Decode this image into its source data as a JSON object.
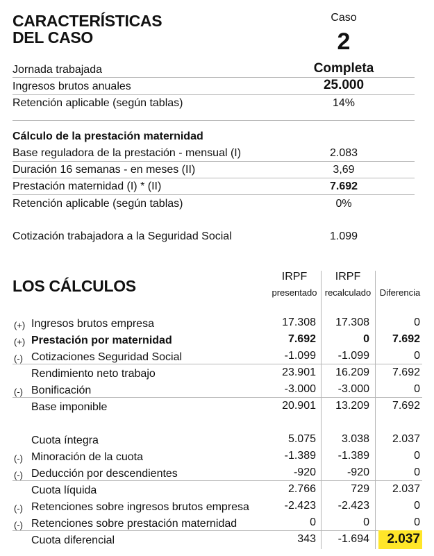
{
  "section1": {
    "title_line1": "CARACTERÍSTICAS",
    "title_line2": "DEL CASO",
    "case_label": "Caso",
    "case_number": "2",
    "rows": [
      {
        "label": "Jornada trabajada",
        "value": "Completa"
      },
      {
        "label": "Ingresos brutos anuales",
        "value": "25.000"
      },
      {
        "label": "Retención aplicable (según tablas)",
        "value": "14%"
      }
    ]
  },
  "section2": {
    "title": "Cálculo de la prestación maternidad",
    "rows": [
      {
        "label": "Base reguladora de la prestación - mensual (I)",
        "value": "2.083"
      },
      {
        "label": "Duración 16 semanas - en meses (II)",
        "value": "3,69"
      },
      {
        "label": "Prestación maternidad (I) * (II)",
        "value": "7.692"
      },
      {
        "label": "Retención aplicable (según tablas)",
        "value": "0%"
      }
    ],
    "contribution": {
      "label": "Cotización trabajadora a la Seguridad Social",
      "value": "1.099"
    }
  },
  "calcs": {
    "title": "LOS CÁLCULOS",
    "headers": {
      "col1_line1": "IRPF",
      "col1_line2": "presentado",
      "col2_line1": "IRPF",
      "col2_line2": "recalculado",
      "col3": "Diferencia"
    },
    "rows": [
      {
        "sign": "(+)",
        "label": "Ingresos brutos empresa",
        "c1": "17.308",
        "c2": "17.308",
        "c3": "0"
      },
      {
        "sign": "(+)",
        "label": "Prestación por maternidad",
        "c1": "7.692",
        "c2": "0",
        "c3": "7.692"
      },
      {
        "sign": "(-)",
        "label": "Cotizaciones Seguridad Social",
        "c1": "-1.099",
        "c2": "-1.099",
        "c3": "0"
      },
      {
        "sign": "",
        "label": "Rendimiento neto trabajo",
        "c1": "23.901",
        "c2": "16.209",
        "c3": "7.692"
      },
      {
        "sign": "(-)",
        "label": "Bonificación",
        "c1": "-3.000",
        "c2": "-3.000",
        "c3": "0"
      },
      {
        "sign": "",
        "label": "Base imponible",
        "c1": "20.901",
        "c2": "13.209",
        "c3": "7.692"
      },
      {
        "sign": "",
        "label": "Cuota íntegra",
        "c1": "5.075",
        "c2": "3.038",
        "c3": "2.037"
      },
      {
        "sign": "(-)",
        "label": "Minoración de la cuota",
        "c1": "-1.389",
        "c2": "-1.389",
        "c3": "0"
      },
      {
        "sign": "(-)",
        "label": "Deducción por descendientes",
        "c1": "-920",
        "c2": "-920",
        "c3": "0"
      },
      {
        "sign": "",
        "label": "Cuota líquida",
        "c1": "2.766",
        "c2": "729",
        "c3": "2.037"
      },
      {
        "sign": "(-)",
        "label": "Retenciones sobre ingresos brutos empresa",
        "c1": "-2.423",
        "c2": "-2.423",
        "c3": "0"
      },
      {
        "sign": "(-)",
        "label": "Retenciones sobre prestación maternidad",
        "c1": "0",
        "c2": "0",
        "c3": "0"
      },
      {
        "sign": "",
        "label": "Cuota diferencial",
        "c1": "343",
        "c2": "-1.694",
        "c3": "2.037"
      }
    ]
  },
  "colors": {
    "highlight": "#ffe629",
    "rule": "#b5b5b5"
  }
}
